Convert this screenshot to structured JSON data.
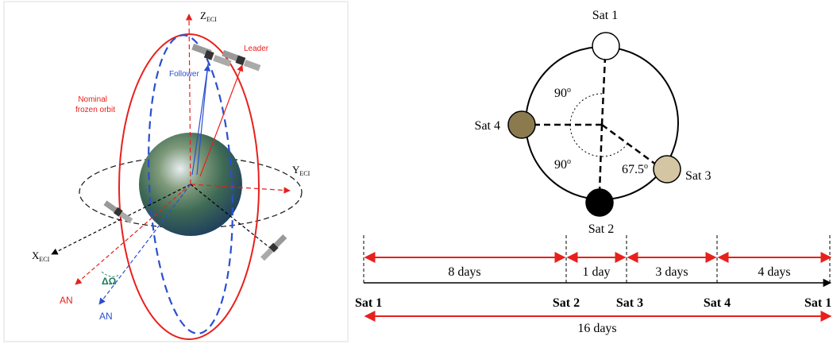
{
  "orbit_figure": {
    "z_axis": {
      "base": "Z",
      "sub": "ECI"
    },
    "y_axis": {
      "base": "Y",
      "sub": "ECI"
    },
    "x_axis": {
      "base": "X",
      "sub": "ECI"
    },
    "leader": "Leader",
    "follower": "Follower",
    "orbit_label": [
      "Nominal",
      "frozen orbit"
    ],
    "an_red": "AN",
    "an_blue": "AN",
    "delta_omega": "ΔΩ"
  },
  "constellation": {
    "satellites": [
      "Sat 1",
      "Sat 2",
      "Sat 3",
      "Sat 4"
    ],
    "angles": [
      {
        "base": "90",
        "sup": "o"
      },
      {
        "base": "90",
        "sup": "o"
      },
      {
        "base": "67.5",
        "sup": "o"
      }
    ]
  },
  "timeline": {
    "intervals": [
      "8 days",
      "1 day",
      "3 days",
      "4 days"
    ],
    "stations": [
      "Sat 1",
      "Sat 2",
      "Sat 3",
      "Sat 4",
      "Sat 1"
    ],
    "total": "16 days"
  }
}
